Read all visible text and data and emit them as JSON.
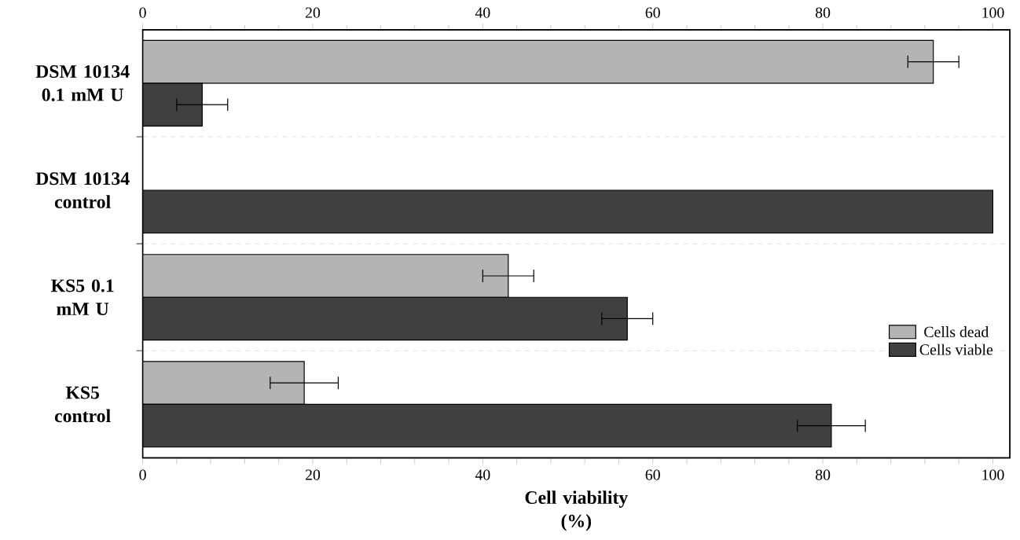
{
  "chart_data": {
    "type": "bar",
    "orientation": "horizontal",
    "categories": [
      "DSM 10134 0.1 mM U",
      "DSM 10134 control",
      "KS5 0.1 mM U",
      "KS5 control"
    ],
    "xlabel": "Cell viability (%)",
    "xlim": [
      0,
      102
    ],
    "xticks": [
      0,
      20,
      40,
      60,
      80,
      100
    ],
    "x2lim": [
      0,
      102
    ],
    "x2ticks": [
      0,
      20,
      40,
      60,
      80,
      100
    ],
    "grid": "y",
    "legend": "bottom right",
    "series": [
      {
        "name": "Cells dead",
        "color": "#b4b4b4",
        "values": [
          93,
          null,
          43,
          19
        ],
        "errors": [
          3,
          null,
          3,
          4
        ]
      },
      {
        "name": "Cells viable",
        "color": "#404040",
        "values": [
          7,
          100,
          57,
          81
        ],
        "errors": [
          3,
          null,
          3,
          4
        ]
      }
    ]
  }
}
